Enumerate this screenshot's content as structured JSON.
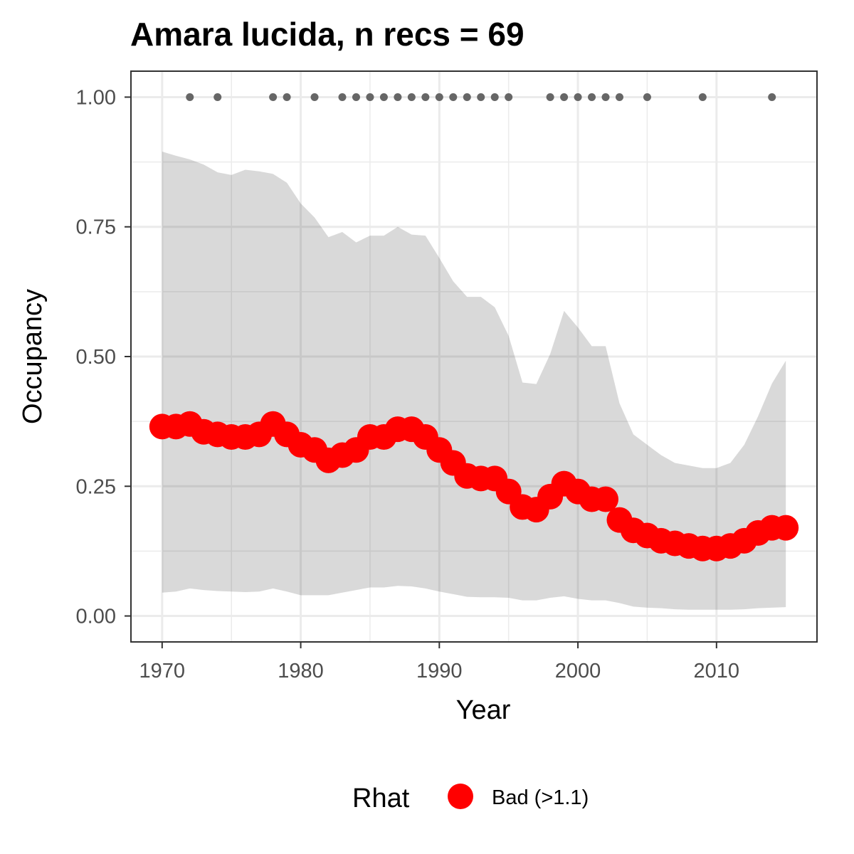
{
  "chart_data": {
    "type": "line",
    "title": "Amara lucida, n recs = 69",
    "xlabel": "Year",
    "ylabel": "Occupancy",
    "xlim": [
      1967.75,
      2017.25
    ],
    "ylim": [
      -0.05,
      1.05
    ],
    "x_ticks": [
      1970,
      1980,
      1990,
      2000,
      2010
    ],
    "x_tick_labels": [
      "1970",
      "1980",
      "1990",
      "2000",
      "2010"
    ],
    "y_ticks": [
      0,
      0.25,
      0.5,
      0.75,
      1.0
    ],
    "y_tick_labels": [
      "0.00",
      "0.25",
      "0.50",
      "0.75",
      "1.00"
    ],
    "grid": true,
    "legend": {
      "title": "Rhat",
      "position": "bottom",
      "entries": [
        {
          "label": "Bad (>1.1)",
          "color": "#ff0000"
        }
      ]
    },
    "colors": {
      "points": "#ff0000",
      "ribbon": "#d9d9d9",
      "records": "#666666",
      "grid": "#ebebeb",
      "panel_border": "#333333"
    },
    "x": [
      1970,
      1971,
      1972,
      1973,
      1974,
      1975,
      1976,
      1977,
      1978,
      1979,
      1980,
      1981,
      1982,
      1983,
      1984,
      1985,
      1986,
      1987,
      1988,
      1989,
      1990,
      1991,
      1992,
      1993,
      1994,
      1995,
      1996,
      1997,
      1998,
      1999,
      2000,
      2001,
      2002,
      2003,
      2004,
      2005,
      2006,
      2007,
      2008,
      2009,
      2010,
      2011,
      2012,
      2013,
      2014,
      2015
    ],
    "series": [
      {
        "values": [
          0.365,
          0.365,
          0.37,
          0.355,
          0.35,
          0.345,
          0.345,
          0.35,
          0.37,
          0.35,
          0.33,
          0.32,
          0.3,
          0.31,
          0.32,
          0.345,
          0.345,
          0.36,
          0.36,
          0.345,
          0.32,
          0.295,
          0.27,
          0.265,
          0.265,
          0.24,
          0.21,
          0.205,
          0.23,
          0.255,
          0.24,
          0.225,
          0.225,
          0.185,
          0.165,
          0.155,
          0.145,
          0.14,
          0.135,
          0.13,
          0.13,
          0.135,
          0.145,
          0.16,
          0.17,
          0.17
        ]
      }
    ],
    "interval": {
      "upper": [
        0.895,
        0.887,
        0.88,
        0.87,
        0.855,
        0.85,
        0.86,
        0.857,
        0.852,
        0.835,
        0.795,
        0.768,
        0.73,
        0.74,
        0.72,
        0.733,
        0.733,
        0.75,
        0.735,
        0.733,
        0.69,
        0.645,
        0.615,
        0.615,
        0.595,
        0.54,
        0.45,
        0.447,
        0.505,
        0.588,
        0.556,
        0.52,
        0.52,
        0.41,
        0.35,
        0.33,
        0.31,
        0.295,
        0.29,
        0.285,
        0.285,
        0.295,
        0.33,
        0.385,
        0.448,
        0.492
      ],
      "lower": [
        0.045,
        0.047,
        0.053,
        0.05,
        0.048,
        0.047,
        0.046,
        0.047,
        0.053,
        0.047,
        0.04,
        0.04,
        0.04,
        0.045,
        0.05,
        0.055,
        0.055,
        0.058,
        0.057,
        0.053,
        0.047,
        0.042,
        0.037,
        0.036,
        0.036,
        0.035,
        0.03,
        0.03,
        0.035,
        0.038,
        0.033,
        0.03,
        0.03,
        0.025,
        0.018,
        0.016,
        0.015,
        0.013,
        0.012,
        0.012,
        0.012,
        0.012,
        0.013,
        0.015,
        0.016,
        0.017
      ]
    },
    "records": {
      "y": 1.0,
      "years": [
        1972,
        1974,
        1978,
        1979,
        1981,
        1983,
        1984,
        1985,
        1986,
        1987,
        1988,
        1989,
        1990,
        1991,
        1992,
        1993,
        1994,
        1995,
        1998,
        1999,
        2000,
        2001,
        2002,
        2003,
        2005,
        2009,
        2014
      ]
    }
  }
}
